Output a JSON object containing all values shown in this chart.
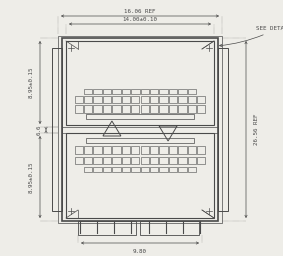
{
  "bg_color": "#eeede8",
  "line_color": "#4a4a4a",
  "dim_color": "#4a4a4a",
  "dim_font_size": 4.2,
  "fig_width": 2.83,
  "fig_height": 2.56,
  "dpi": 100,
  "annotations": {
    "top_dim1": "16.06 REF",
    "top_dim2": "14.00±0.10",
    "right_dim1": "26.56 REF",
    "left_dim1": "8.95±0.15",
    "left_dim2": "6.6",
    "left_dim3": "8.95±0.15",
    "bottom_dim": "9.80",
    "detail_label": "SEE DETAIL A"
  }
}
